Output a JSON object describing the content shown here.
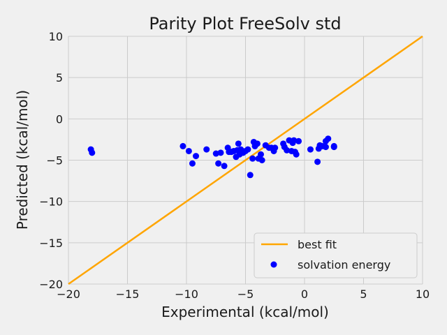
{
  "chart_data": {
    "type": "scatter",
    "title": "Parity Plot FreeSolv std",
    "xlabel": "Experimental (kcal/mol)",
    "ylabel": "Predicted (kcal/mol)",
    "xlim": [
      -20,
      10
    ],
    "ylim": [
      -20,
      10
    ],
    "xticks": [
      "−20",
      "−15",
      "−10",
      "−5",
      "0",
      "5",
      "10"
    ],
    "yticks": [
      "−20",
      "−15",
      "−10",
      "−5",
      "0",
      "5",
      "10"
    ],
    "xtick_values": [
      -20,
      -15,
      -10,
      -5,
      0,
      5,
      10
    ],
    "ytick_values": [
      -20,
      -15,
      -10,
      -5,
      0,
      5,
      10
    ],
    "grid": true,
    "legend_position": "lower-right",
    "best_fit": {
      "name": "best fit",
      "color": "#ffa500",
      "x": [
        -20,
        10
      ],
      "y": [
        -20,
        10
      ]
    },
    "scatter": {
      "name": "solvation energy",
      "color": "#0000ff",
      "points": [
        [
          -18.1,
          -3.7
        ],
        [
          -18.0,
          -4.1
        ],
        [
          -10.3,
          -3.3
        ],
        [
          -9.8,
          -3.9
        ],
        [
          -9.5,
          -5.4
        ],
        [
          -9.2,
          -4.5
        ],
        [
          -8.3,
          -3.7
        ],
        [
          -7.5,
          -4.2
        ],
        [
          -7.3,
          -5.4
        ],
        [
          -7.1,
          -4.1
        ],
        [
          -6.8,
          -5.7
        ],
        [
          -6.5,
          -3.5
        ],
        [
          -6.4,
          -4.0
        ],
        [
          -6.2,
          -4.0
        ],
        [
          -6.0,
          -3.9
        ],
        [
          -5.8,
          -4.6
        ],
        [
          -5.7,
          -3.8
        ],
        [
          -5.6,
          -3.0
        ],
        [
          -5.5,
          -4.3
        ],
        [
          -5.4,
          -3.7
        ],
        [
          -5.2,
          -4.1
        ],
        [
          -5.0,
          -3.9
        ],
        [
          -4.8,
          -3.7
        ],
        [
          -4.6,
          -6.8
        ],
        [
          -4.4,
          -4.8
        ],
        [
          -4.3,
          -2.8
        ],
        [
          -4.2,
          -3.3
        ],
        [
          -4.0,
          -3.0
        ],
        [
          -3.9,
          -4.8
        ],
        [
          -3.7,
          -4.3
        ],
        [
          -3.6,
          -5.0
        ],
        [
          -3.3,
          -3.2
        ],
        [
          -3.0,
          -3.5
        ],
        [
          -2.8,
          -3.5
        ],
        [
          -2.6,
          -3.9
        ],
        [
          -2.5,
          -3.5
        ],
        [
          -1.8,
          -3.0
        ],
        [
          -1.7,
          -3.4
        ],
        [
          -1.5,
          -3.8
        ],
        [
          -1.3,
          -2.6
        ],
        [
          -1.1,
          -3.9
        ],
        [
          -1.0,
          -2.9
        ],
        [
          -0.9,
          -2.6
        ],
        [
          -0.8,
          -4.0
        ],
        [
          -0.7,
          -4.3
        ],
        [
          -0.5,
          -2.7
        ],
        [
          0.5,
          -3.7
        ],
        [
          1.1,
          -5.2
        ],
        [
          1.2,
          -3.6
        ],
        [
          1.3,
          -3.2
        ],
        [
          1.5,
          -3.3
        ],
        [
          1.8,
          -3.4
        ],
        [
          1.8,
          -2.7
        ],
        [
          2.0,
          -2.4
        ],
        [
          2.5,
          -3.3
        ],
        [
          2.5,
          -3.4
        ]
      ]
    }
  }
}
